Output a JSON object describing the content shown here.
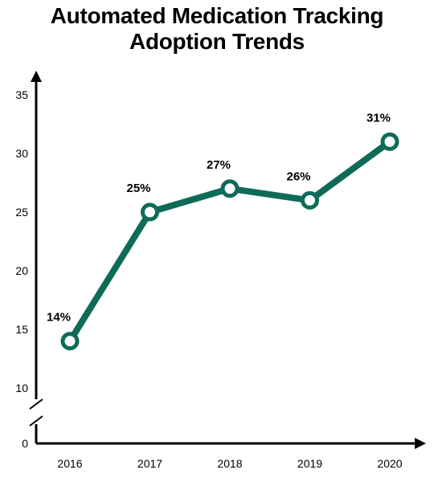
{
  "chart_data": {
    "type": "line",
    "title_line1": "Automated Medication Tracking",
    "title_line2": "Adoption Trends",
    "xlabel": "",
    "ylabel": "",
    "categories": [
      "2016",
      "2017",
      "2018",
      "2019",
      "2020"
    ],
    "values": [
      14,
      25,
      27,
      26,
      31
    ],
    "data_labels": [
      "14%",
      "25%",
      "27%",
      "26%",
      "31%"
    ],
    "y_ticks": [
      "0",
      "10",
      "15",
      "20",
      "25",
      "30",
      "35"
    ],
    "ylim": [
      0,
      35
    ],
    "y_axis_break": [
      0,
      10
    ],
    "grid": false,
    "legend": "none",
    "line_color": "#0e6b57",
    "marker_fill": "#ffffff"
  }
}
